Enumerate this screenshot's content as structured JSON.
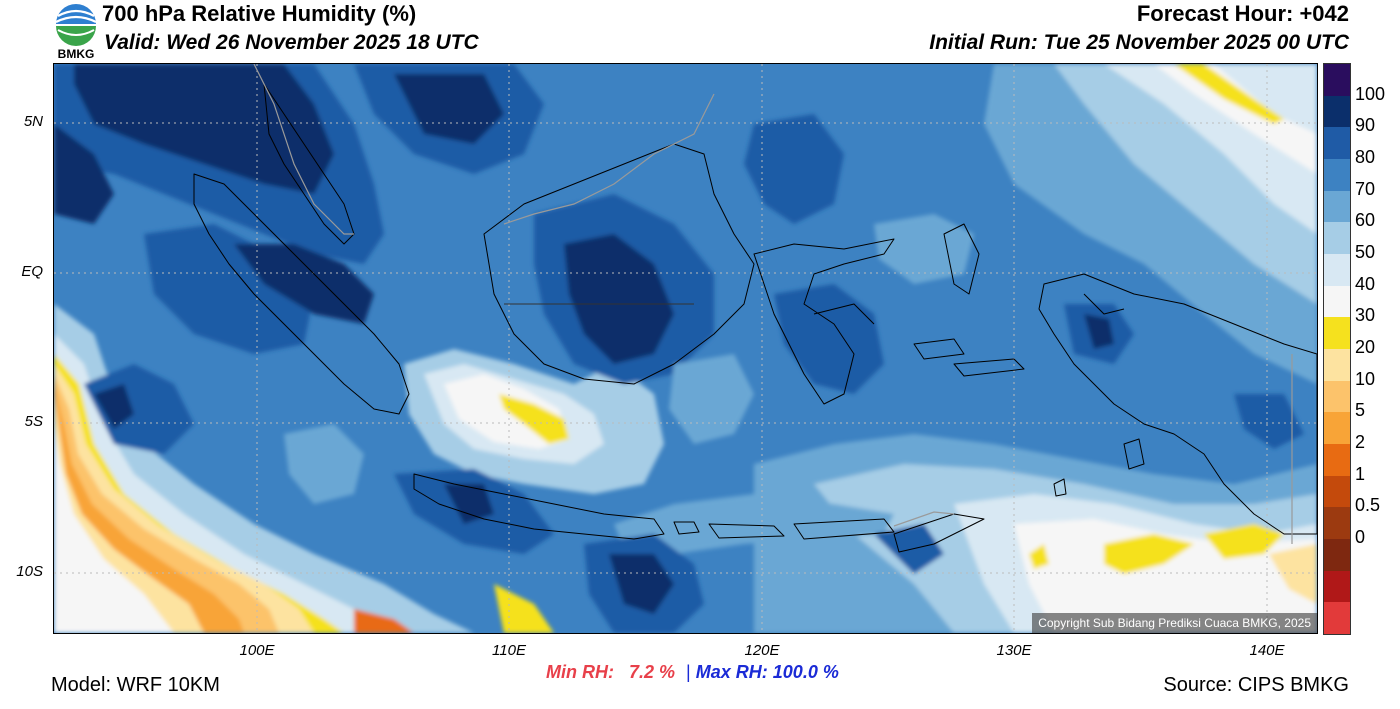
{
  "header": {
    "title": "700 hPa Relative Humidity (%)",
    "valid": "Valid: Wed 26 November 2025 18 UTC",
    "forecast_hour": "Forecast Hour: +042",
    "initial_run": "Initial Run: Tue 25 November 2025 00 UTC",
    "logo_text": "BMKG"
  },
  "map": {
    "copyright": "Copyright Sub Bidang Prediksi Cuaca BMKG, 2025",
    "lat_labels": [
      "5N",
      "EQ",
      "5S",
      "10S"
    ],
    "lon_labels": [
      "100E",
      "110E",
      "120E",
      "130E",
      "140E"
    ]
  },
  "colorbar": {
    "labels": [
      "100",
      "90",
      "80",
      "70",
      "60",
      "50",
      "40",
      "30",
      "20",
      "10",
      "5",
      "2",
      "1",
      "0.5",
      "0"
    ],
    "colors": [
      "#2a0d5e",
      "#0b2f6b",
      "#1f5ba6",
      "#3d82c2",
      "#6aa7d4",
      "#a6cde6",
      "#d8e8f3",
      "#f6f6f6",
      "#f5e11e",
      "#fde3a0",
      "#fcc36b",
      "#f8a437",
      "#e86b12",
      "#c44a0c",
      "#9c3a10",
      "#7e2810",
      "#b01818",
      "#e23a3a"
    ]
  },
  "stats": {
    "min_label": "Min RH:",
    "min_value": "7.2 %",
    "separator": "|",
    "max_label": "Max RH:",
    "max_value": "100.0 %"
  },
  "footer": {
    "model": "Model: WRF 10KM",
    "source": "Source: CIPS BMKG"
  }
}
